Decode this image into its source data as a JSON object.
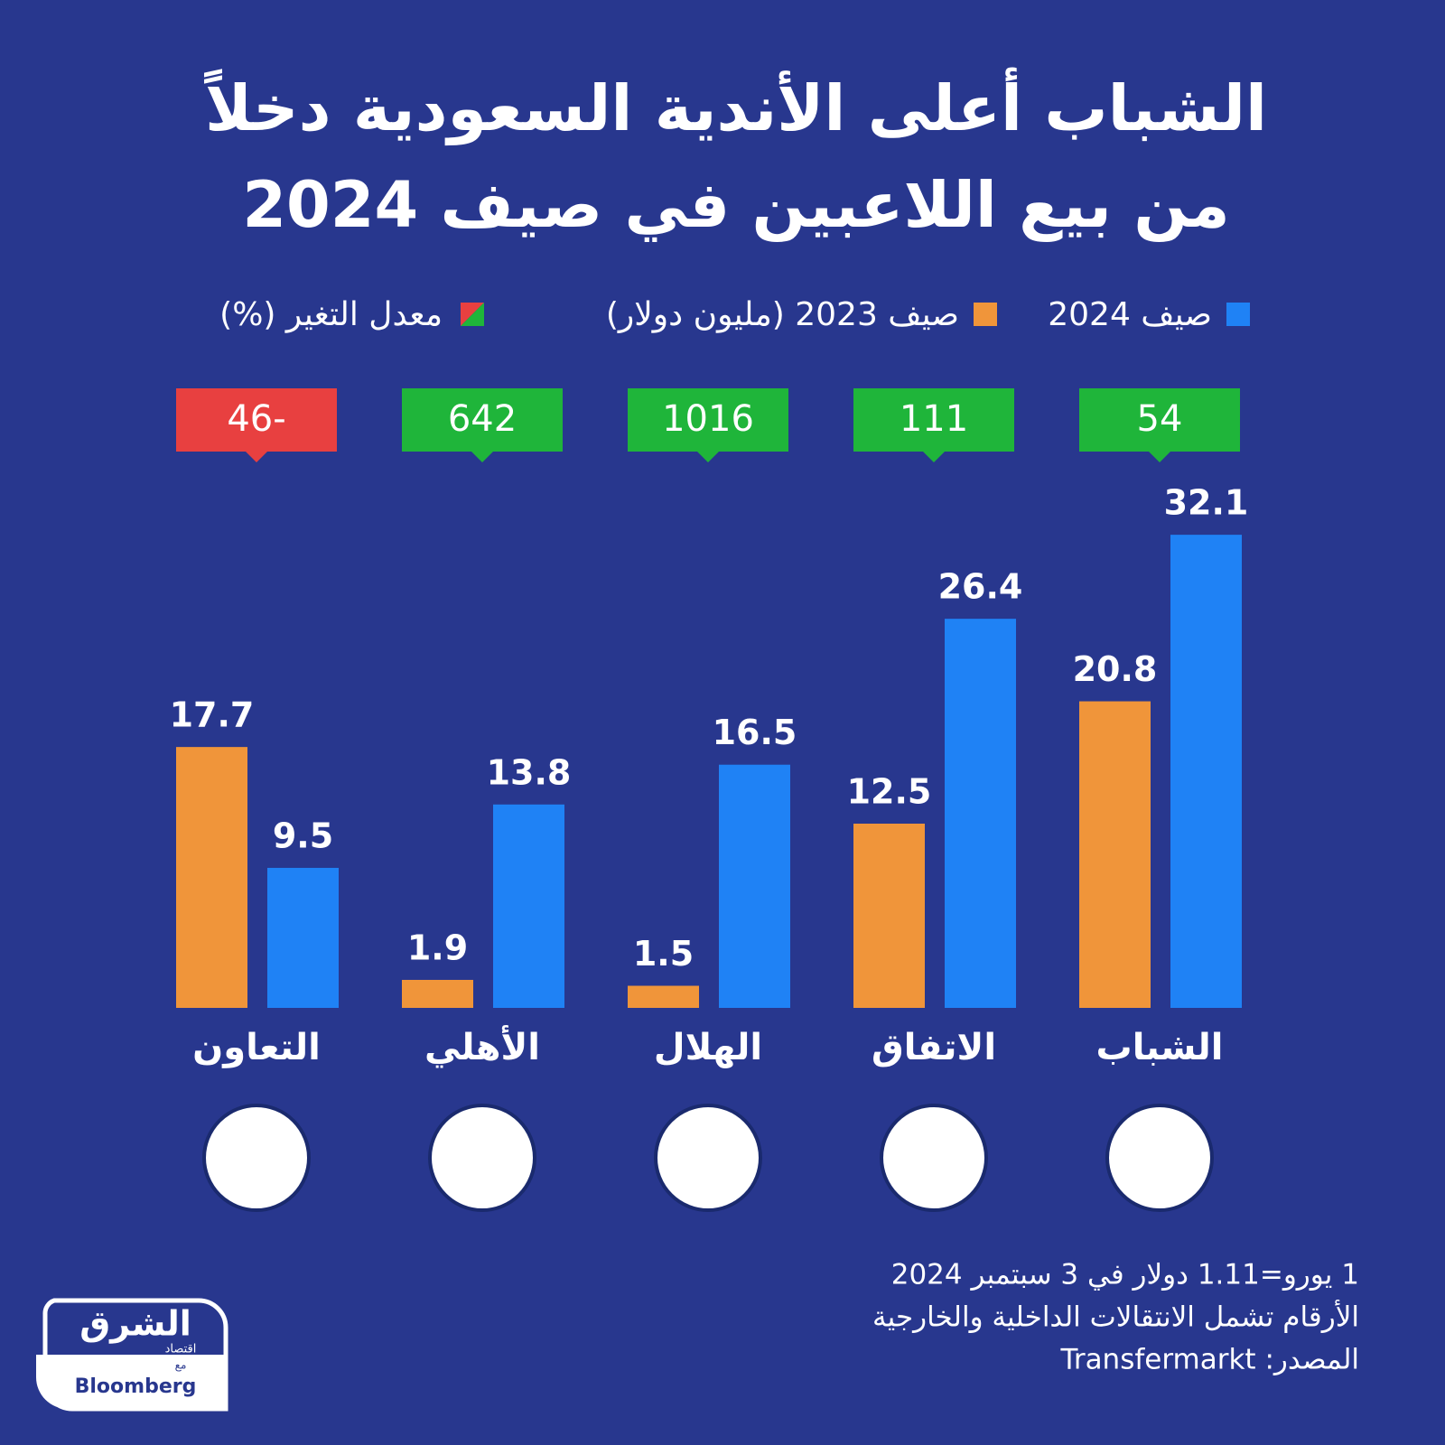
{
  "chart_data": {
    "type": "bar",
    "title": "الشباب أعلى الأندية السعودية دخلاً",
    "subtitle": "من بيع اللاعبين في صيف 2024",
    "categories": [
      "الشباب",
      "الاتفاق",
      "الهلال",
      "الأهلي",
      "التعاون"
    ],
    "series": [
      {
        "name": "صيف 2023 (مليون دولار)",
        "color": "#f0953a",
        "values": [
          20.8,
          12.5,
          1.5,
          1.9,
          17.7
        ]
      },
      {
        "name": "صيف 2024",
        "color": "#1f82f5",
        "values": [
          32.1,
          26.4,
          16.5,
          13.8,
          9.5
        ]
      }
    ],
    "change": {
      "name": "معدل التغير (%)",
      "values": [
        54,
        111,
        1016,
        642,
        -46
      ],
      "value_labels": [
        "54",
        "111",
        "1016",
        "642",
        "46-"
      ],
      "positive_color": "#1fb53a",
      "negative_color": "#e84040"
    },
    "notes": [
      "1 يورو=1.11 دولار في 3 سبتمبر 2024",
      "الأرقام تشمل الانتقالات الداخلية والخارجية",
      "المصدر: Transfermarkt"
    ],
    "brand": {
      "name": "الشرق",
      "sub": "اقتصاد",
      "with": "مع",
      "partner": "Bloomberg"
    }
  }
}
